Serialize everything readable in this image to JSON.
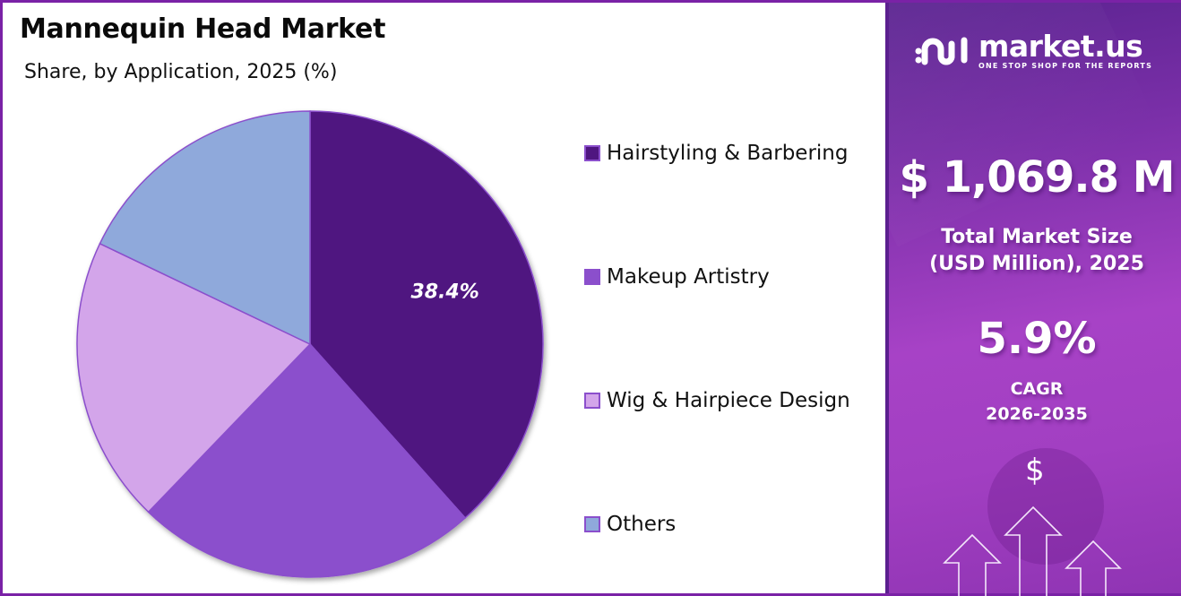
{
  "header": {
    "title": "Mannequin Head Market",
    "subtitle": "Share, by Application, 2025 (%)"
  },
  "chart_data": {
    "type": "pie",
    "title": "Mannequin Head Market",
    "subtitle": "Share, by Application, 2025 (%)",
    "categories": [
      "Hairstyling & Barbering",
      "Makeup Artistry",
      "Wig & Hairpiece Design",
      "Others"
    ],
    "values": [
      38.4,
      23.8,
      19.9,
      17.9
    ],
    "colors": [
      "#4f1680",
      "#8b4fcc",
      "#d3a5ea",
      "#8fa9db"
    ],
    "data_labels": [
      "38.4%",
      "",
      "",
      ""
    ],
    "start_angle_deg": 0,
    "direction": "clockwise",
    "legend_position": "right",
    "units": "%"
  },
  "legend": {
    "items": [
      {
        "label": "Hairstyling & Barbering",
        "color": "#4f1680"
      },
      {
        "label": "Makeup Artistry",
        "color": "#8b4fcc"
      },
      {
        "label": "Wig & Hairpiece Design",
        "color": "#d3a5ea"
      },
      {
        "label": "Others",
        "color": "#8fa9db"
      }
    ]
  },
  "sidebar": {
    "brand_name": "market.us",
    "brand_tagline": "ONE STOP SHOP FOR THE REPORTS",
    "market_size_value": "$ 1,069.8 M",
    "market_size_label_line1": "Total Market Size",
    "market_size_label_line2": "(USD Million), 2025",
    "cagr_value": "5.9%",
    "cagr_label_line1": "CAGR",
    "cagr_label_line2": "2026-2035",
    "dollar_icon": "$"
  },
  "colors": {
    "frame_border": "#7a22a6",
    "panel_dark": "#5a2390",
    "panel_light": "#a742c6",
    "slice_border": "#8b4fcc"
  }
}
